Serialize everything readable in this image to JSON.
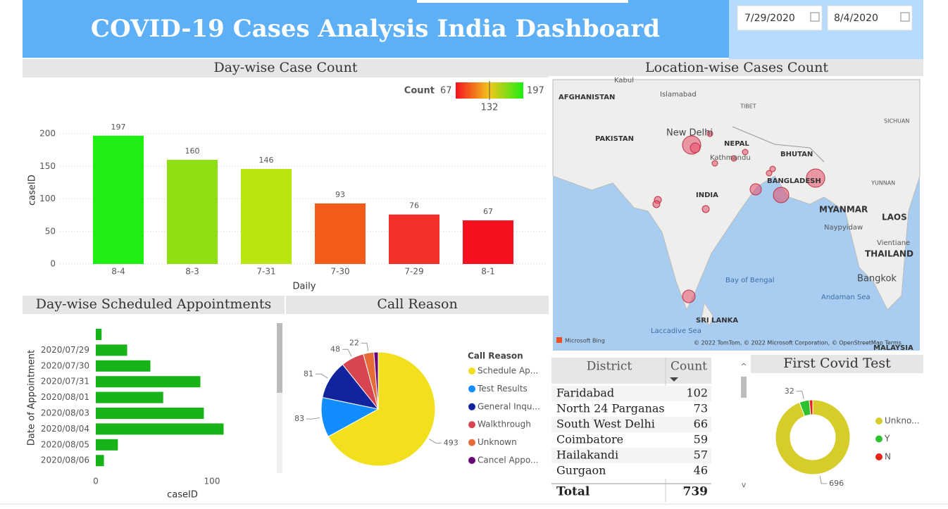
{
  "header": {
    "title": "COVID-19 Cases Analysis India Dashboard",
    "date_from": "7/29/2020",
    "date_to": "8/4/2020"
  },
  "chart_data": [
    {
      "type": "bar",
      "title": "Day-wise Case Count",
      "x_label": "Daily",
      "y_label": "caseID",
      "categories": [
        "8-4",
        "8-3",
        "7-31",
        "7-30",
        "7-29",
        "8-1"
      ],
      "values": [
        197,
        160,
        146,
        93,
        76,
        67
      ],
      "colors": [
        "#1fee12",
        "#8fdf13",
        "#b9e511",
        "#f25c19",
        "#f2312a",
        "#f5111f"
      ],
      "ylim": [
        0,
        200
      ],
      "yticks": [
        0,
        50,
        100,
        150,
        200
      ],
      "grid": true,
      "color_scale": {
        "label": "Count",
        "min": 67,
        "mid": 132,
        "max": 197,
        "colors": [
          "#f5111f",
          "#f2c61a",
          "#1fee12"
        ]
      }
    },
    {
      "type": "hbar",
      "title": "Day-wise Scheduled Appointments",
      "x_label": "caseID",
      "y_label": "Date of Appointment",
      "categories": [
        null,
        "2020/07/29",
        "2020/07/30",
        "2020/07/31",
        "2020/08/01",
        "2020/08/03",
        "2020/08/04",
        "2020/08/05",
        "2020/08/06"
      ],
      "values": [
        5,
        27,
        47,
        90,
        58,
        93,
        110,
        19,
        7
      ],
      "color": "#18b318",
      "xlim": [
        0,
        150
      ],
      "xticks": [
        0,
        100
      ]
    },
    {
      "type": "pie",
      "title": "Call Reason",
      "legend_title": "Call Reason",
      "categories": [
        "Schedule Ap...",
        "Test Results",
        "General Inqu...",
        "Walkthrough",
        "Unknown",
        "Cancel Appo..."
      ],
      "values": [
        493,
        83,
        81,
        48,
        22,
        9
      ],
      "colors": [
        "#f2e01e",
        "#118dff",
        "#12239e",
        "#d64550",
        "#e66c37",
        "#6b007b"
      ]
    },
    {
      "type": "donut",
      "title": "First Covid Test",
      "categories": [
        "Unkno...",
        "Y",
        "N"
      ],
      "values": [
        696,
        32,
        11
      ],
      "colors": [
        "#d6cc2a",
        "#2ec02e",
        "#e8231a"
      ]
    }
  ],
  "map": {
    "title": "Location-wise Cases Count",
    "labels": [
      "Kabul",
      "AFGHANISTAN",
      "Islamabad",
      "PAKISTAN",
      "New Delhi",
      "NEPAL",
      "Kathmandu",
      "TIBET",
      "SICHUAN",
      "BHUTAN",
      "BANGLADESH",
      "INDIA",
      "YUNNAN",
      "MYANMAR",
      "Naypyidaw",
      "LAOS",
      "Vientiane",
      "THAILAND",
      "Bangkok",
      "Bay of Bengal",
      "Andaman Sea",
      "SRI LANKA",
      "Laccadive Sea",
      "MALAYSIA"
    ],
    "brand": "Microsoft Bing",
    "credits": "© 2022 TomTom, © 2022 Microsoft Corporation, © OpenStreetMap  Terms"
  },
  "table": {
    "columns": [
      "District",
      "Count"
    ],
    "rows": [
      [
        "Faridabad",
        102
      ],
      [
        "North 24 Parganas",
        73
      ],
      [
        "South West Delhi",
        66
      ],
      [
        "Coimbatore",
        59
      ],
      [
        "Hailakandi",
        57
      ],
      [
        "Gurgaon",
        46
      ]
    ],
    "total": [
      "Total",
      739
    ]
  }
}
